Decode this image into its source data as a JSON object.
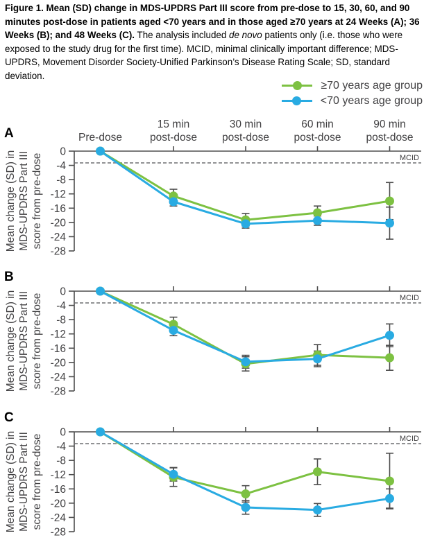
{
  "caption": {
    "bold": "Figure 1. Mean (SD) change in MDS-UPDRS Part III score from pre-dose to 15, 30, 60, and 90 minutes post-dose in patients aged <70 years and in those aged ≥70 years at 24 Weeks (A); 36 Weeks (B); and 48 Weeks (C).",
    "normal_before_italic": " The analysis included ",
    "italic": "de novo",
    "normal_after_italic": " patients only (i.e. those who were exposed to the study drug for the first time). MCID, minimal clinically important difference; MDS-UPDRS, Movement Disorder Society-Unified Parkinson’s Disease Rating Scale; SD, standard deviation."
  },
  "legend": {
    "items": [
      {
        "label": "≥70 years age group",
        "color": "#7DC142"
      },
      {
        "label": "<70 years age group",
        "color": "#29ABE2"
      }
    ]
  },
  "axes": {
    "ylabel_lines": [
      "Mean change (SD) in",
      "MDS-UPDRS Part III",
      "score from pre-dose"
    ],
    "y_ticks": [
      0,
      -4,
      -8,
      -12,
      -16,
      -20,
      -24,
      -28
    ],
    "ylim": [
      0,
      -28
    ],
    "categories": [
      "Pre-dose",
      "15 min\npost-dose",
      "30 min\npost-dose",
      "60 min\npost-dose",
      "90 min\npost-dose"
    ],
    "mcid_label": "MCID",
    "mcid_value": -3.3,
    "grid": false,
    "legend_position": "top-right"
  },
  "chart_data": [
    {
      "type": "line",
      "panel": "A",
      "categories": [
        "Pre-dose",
        "15 min post-dose",
        "30 min post-dose",
        "60 min post-dose",
        "90 min post-dose"
      ],
      "series": [
        {
          "name": "≥70 years age group",
          "color": "#7DC142",
          "values": [
            0,
            -12.6,
            -19.3,
            -17.3,
            -14.0
          ],
          "sd": [
            0,
            1.9,
            1.8,
            1.9,
            5.2
          ]
        },
        {
          "name": "<70 years age group",
          "color": "#29ABE2",
          "values": [
            0,
            -14.2,
            -20.4,
            -19.5,
            -20.2
          ],
          "sd": [
            0,
            1.2,
            1.2,
            1.3,
            4.5
          ]
        }
      ]
    },
    {
      "type": "line",
      "panel": "B",
      "categories": [
        "Pre-dose",
        "15 min post-dose",
        "30 min post-dose",
        "60 min post-dose",
        "90 min post-dose"
      ],
      "series": [
        {
          "name": "≥70 years age group",
          "color": "#7DC142",
          "values": [
            0,
            -9.3,
            -20.4,
            -17.9,
            -18.7
          ],
          "sd": [
            0,
            2.0,
            2.0,
            2.9,
            3.5
          ]
        },
        {
          "name": "<70 years age group",
          "color": "#29ABE2",
          "values": [
            0,
            -11.0,
            -19.8,
            -19.0,
            -12.4
          ],
          "sd": [
            0,
            1.5,
            1.8,
            2.2,
            3.2
          ]
        }
      ]
    },
    {
      "type": "line",
      "panel": "C",
      "categories": [
        "Pre-dose",
        "15 min post-dose",
        "30 min post-dose",
        "60 min post-dose",
        "90 min post-dose"
      ],
      "series": [
        {
          "name": "≥70 years age group",
          "color": "#7DC142",
          "values": [
            0,
            -12.7,
            -17.4,
            -11.2,
            -13.8
          ],
          "sd": [
            0,
            2.6,
            2.3,
            3.6,
            7.8
          ]
        },
        {
          "name": "<70 years age group",
          "color": "#29ABE2",
          "values": [
            0,
            -11.9,
            -21.2,
            -21.9,
            -18.7
          ],
          "sd": [
            0,
            1.9,
            1.9,
            1.8,
            2.7
          ]
        }
      ]
    }
  ]
}
